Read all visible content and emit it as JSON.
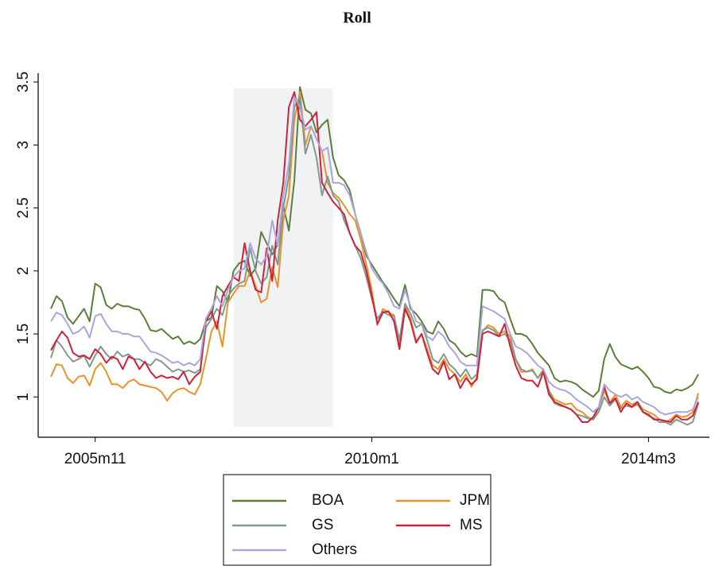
{
  "chart_data": {
    "type": "line",
    "title": "Roll",
    "x": [
      "2005m3",
      "2005m4",
      "2005m5",
      "2005m6",
      "2005m7",
      "2005m8",
      "2005m9",
      "2005m10",
      "2005m11",
      "2005m12",
      "2006m1",
      "2006m2",
      "2006m3",
      "2006m4",
      "2006m5",
      "2006m6",
      "2006m7",
      "2006m8",
      "2006m9",
      "2006m10",
      "2006m11",
      "2006m12",
      "2007m1",
      "2007m2",
      "2007m3",
      "2007m4",
      "2007m5",
      "2007m6",
      "2007m7",
      "2007m8",
      "2007m9",
      "2007m10",
      "2007m11",
      "2007m12",
      "2008m1",
      "2008m2",
      "2008m3",
      "2008m4",
      "2008m5",
      "2008m6",
      "2008m7",
      "2008m8",
      "2008m9",
      "2008m10",
      "2008m11",
      "2008m12",
      "2009m1",
      "2009m2",
      "2009m3",
      "2009m4",
      "2009m5",
      "2009m6",
      "2009m7",
      "2009m8",
      "2009m9",
      "2009m10",
      "2009m11",
      "2009m12",
      "2010m1",
      "2010m2",
      "2010m3",
      "2010m4",
      "2010m5",
      "2010m6",
      "2010m7",
      "2010m8",
      "2010m9",
      "2010m10",
      "2010m11",
      "2010m12",
      "2011m1",
      "2011m2",
      "2011m3",
      "2011m4",
      "2011m5",
      "2011m6",
      "2011m7",
      "2011m8",
      "2011m9",
      "2011m10",
      "2011m11",
      "2011m12",
      "2012m1",
      "2012m2",
      "2012m3",
      "2012m4",
      "2012m5",
      "2012m6",
      "2012m7",
      "2012m8",
      "2012m9",
      "2012m10",
      "2012m11",
      "2012m12",
      "2013m1",
      "2013m2",
      "2013m3",
      "2013m4",
      "2013m5",
      "2013m6",
      "2013m7",
      "2013m8",
      "2013m9",
      "2013m10",
      "2013m11",
      "2013m12",
      "2014m1",
      "2014m2",
      "2014m3",
      "2014m4",
      "2014m5",
      "2014m6",
      "2014m7",
      "2014m8",
      "2014m9",
      "2014m10",
      "2014m11",
      "2014m12"
    ],
    "shade": {
      "from": "2007m12",
      "to": "2009m6"
    },
    "ylim": [
      0.68,
      3.57
    ],
    "yticks": [
      1,
      1.5,
      2,
      2.5,
      3,
      3.5
    ],
    "xticks": [
      "2005m11",
      "2010m1",
      "2014m3"
    ],
    "series": [
      {
        "name": "BOA",
        "color": "#5b7f3a",
        "values": [
          1.7,
          1.8,
          1.76,
          1.63,
          1.58,
          1.64,
          1.7,
          1.6,
          1.9,
          1.87,
          1.73,
          1.7,
          1.74,
          1.72,
          1.72,
          1.7,
          1.69,
          1.62,
          1.53,
          1.52,
          1.54,
          1.5,
          1.46,
          1.48,
          1.42,
          1.44,
          1.42,
          1.46,
          1.6,
          1.63,
          1.88,
          1.84,
          1.75,
          2.0,
          2.06,
          2.08,
          1.96,
          2.02,
          2.31,
          2.22,
          2.13,
          2.21,
          2.52,
          2.32,
          2.72,
          3.46,
          3.28,
          3.25,
          3.1,
          3.16,
          3.2,
          2.9,
          2.76,
          2.72,
          2.64,
          2.45,
          2.3,
          2.12,
          2.05,
          1.98,
          1.91,
          1.85,
          1.78,
          1.72,
          1.89,
          1.7,
          1.66,
          1.6,
          1.52,
          1.5,
          1.6,
          1.54,
          1.45,
          1.42,
          1.36,
          1.32,
          1.34,
          1.32,
          1.85,
          1.85,
          1.84,
          1.78,
          1.75,
          1.62,
          1.5,
          1.5,
          1.48,
          1.42,
          1.35,
          1.3,
          1.25,
          1.15,
          1.12,
          1.13,
          1.12,
          1.1,
          1.06,
          1.03,
          1.0,
          1.05,
          1.3,
          1.42,
          1.32,
          1.26,
          1.24,
          1.22,
          1.24,
          1.2,
          1.15,
          1.08,
          1.07,
          1.04,
          1.03,
          1.06,
          1.05,
          1.07,
          1.1,
          1.18
        ]
      },
      {
        "name": "JPM",
        "color": "#e8932a",
        "values": [
          1.16,
          1.26,
          1.25,
          1.15,
          1.11,
          1.16,
          1.17,
          1.09,
          1.22,
          1.27,
          1.2,
          1.1,
          1.1,
          1.07,
          1.12,
          1.14,
          1.1,
          1.09,
          1.08,
          1.07,
          1.04,
          0.97,
          1.03,
          1.06,
          1.07,
          1.04,
          1.02,
          1.1,
          1.3,
          1.52,
          1.6,
          1.4,
          1.75,
          1.82,
          1.88,
          1.88,
          2.0,
          1.88,
          1.75,
          1.78,
          2.03,
          1.87,
          2.4,
          2.6,
          3.2,
          3.42,
          3.0,
          3.15,
          3.05,
          2.95,
          2.7,
          2.62,
          2.58,
          2.52,
          2.45,
          2.4,
          2.25,
          2.05,
          1.85,
          1.57,
          1.7,
          1.67,
          1.65,
          1.4,
          1.72,
          1.62,
          1.44,
          1.5,
          1.38,
          1.25,
          1.22,
          1.3,
          1.22,
          1.18,
          1.12,
          1.18,
          1.08,
          1.16,
          1.52,
          1.57,
          1.55,
          1.5,
          1.52,
          1.48,
          1.3,
          1.2,
          1.2,
          1.22,
          1.15,
          1.22,
          1.05,
          0.98,
          0.96,
          0.94,
          0.95,
          0.9,
          0.88,
          0.84,
          0.82,
          0.92,
          1.05,
          0.95,
          1.02,
          0.92,
          0.97,
          0.94,
          0.96,
          0.9,
          0.88,
          0.86,
          0.82,
          0.8,
          0.82,
          0.86,
          0.84,
          0.85,
          0.88,
          1.03
        ]
      },
      {
        "name": "GS",
        "color": "#7f9a8e",
        "values": [
          1.31,
          1.45,
          1.4,
          1.33,
          1.28,
          1.3,
          1.33,
          1.24,
          1.33,
          1.4,
          1.34,
          1.3,
          1.36,
          1.32,
          1.34,
          1.3,
          1.3,
          1.27,
          1.25,
          1.3,
          1.28,
          1.24,
          1.2,
          1.22,
          1.2,
          1.21,
          1.19,
          1.22,
          1.55,
          1.62,
          1.7,
          1.65,
          1.8,
          1.86,
          1.9,
          1.92,
          2.18,
          2.0,
          1.9,
          1.95,
          2.2,
          2.05,
          2.5,
          2.75,
          3.3,
          3.38,
          2.93,
          3.08,
          2.9,
          2.6,
          2.75,
          2.6,
          2.55,
          2.4,
          2.3,
          2.2,
          2.1,
          1.95,
          1.78,
          1.62,
          1.68,
          1.65,
          1.64,
          1.45,
          1.74,
          1.66,
          1.55,
          1.58,
          1.45,
          1.3,
          1.27,
          1.34,
          1.26,
          1.22,
          1.16,
          1.22,
          1.14,
          1.18,
          1.53,
          1.55,
          1.53,
          1.48,
          1.5,
          1.45,
          1.3,
          1.22,
          1.2,
          1.21,
          1.15,
          1.2,
          1.05,
          0.95,
          0.93,
          0.92,
          0.9,
          0.86,
          0.85,
          0.83,
          0.82,
          0.88,
          1.0,
          0.93,
          0.98,
          0.91,
          0.93,
          0.92,
          0.94,
          0.88,
          0.85,
          0.83,
          0.8,
          0.8,
          0.78,
          0.82,
          0.8,
          0.78,
          0.8,
          0.95
        ]
      },
      {
        "name": "MS",
        "color": "#d0213a",
        "values": [
          1.37,
          1.45,
          1.52,
          1.47,
          1.35,
          1.32,
          1.33,
          1.3,
          1.38,
          1.34,
          1.27,
          1.32,
          1.3,
          1.22,
          1.32,
          1.3,
          1.22,
          1.28,
          1.2,
          1.15,
          1.17,
          1.15,
          1.16,
          1.14,
          1.2,
          1.1,
          1.16,
          1.2,
          1.6,
          1.68,
          1.54,
          1.8,
          1.88,
          1.95,
          1.92,
          2.22,
          2.0,
          1.85,
          1.83,
          2.18,
          1.92,
          2.4,
          2.7,
          3.3,
          3.42,
          3.2,
          3.15,
          3.2,
          3.26,
          2.7,
          2.62,
          2.55,
          2.5,
          2.45,
          2.3,
          2.2,
          2.15,
          2.0,
          1.8,
          1.58,
          1.67,
          1.68,
          1.6,
          1.38,
          1.7,
          1.6,
          1.43,
          1.5,
          1.35,
          1.22,
          1.18,
          1.28,
          1.14,
          1.18,
          1.07,
          1.15,
          1.1,
          1.14,
          1.5,
          1.52,
          1.5,
          1.48,
          1.58,
          1.4,
          1.25,
          1.15,
          1.13,
          1.13,
          1.08,
          1.2,
          1.02,
          0.96,
          0.94,
          0.92,
          0.9,
          0.86,
          0.8,
          0.8,
          0.84,
          0.92,
          1.08,
          0.95,
          0.99,
          0.88,
          0.95,
          0.92,
          0.96,
          0.88,
          0.86,
          0.82,
          0.82,
          0.81,
          0.8,
          0.85,
          0.82,
          0.82,
          0.85,
          0.96
        ]
      },
      {
        "name": "Others",
        "color": "#a9a6de",
        "values": [
          1.6,
          1.67,
          1.65,
          1.58,
          1.5,
          1.52,
          1.56,
          1.47,
          1.64,
          1.66,
          1.58,
          1.52,
          1.52,
          1.5,
          1.5,
          1.48,
          1.48,
          1.42,
          1.36,
          1.35,
          1.33,
          1.3,
          1.27,
          1.28,
          1.25,
          1.27,
          1.25,
          1.3,
          1.62,
          1.7,
          1.8,
          1.72,
          1.85,
          1.95,
          2.0,
          2.02,
          2.22,
          2.1,
          2.05,
          2.12,
          2.4,
          2.2,
          2.6,
          2.85,
          3.38,
          3.3,
          3.12,
          3.15,
          3.05,
          2.95,
          2.98,
          2.7,
          2.7,
          2.68,
          2.6,
          2.45,
          2.3,
          2.15,
          2.02,
          1.95,
          1.9,
          1.82,
          1.72,
          1.7,
          1.85,
          1.72,
          1.6,
          1.58,
          1.48,
          1.45,
          1.52,
          1.48,
          1.4,
          1.35,
          1.28,
          1.25,
          1.25,
          1.25,
          1.72,
          1.7,
          1.68,
          1.65,
          1.62,
          1.5,
          1.4,
          1.38,
          1.35,
          1.3,
          1.25,
          1.22,
          1.12,
          1.08,
          1.06,
          1.05,
          1.02,
          0.98,
          0.95,
          0.92,
          0.88,
          0.92,
          1.1,
          1.05,
          1.02,
          1.0,
          1.02,
          0.98,
          1.0,
          0.96,
          0.94,
          0.92,
          0.88,
          0.86,
          0.87,
          0.88,
          0.88,
          0.88,
          0.9,
          1.0
        ]
      }
    ]
  }
}
